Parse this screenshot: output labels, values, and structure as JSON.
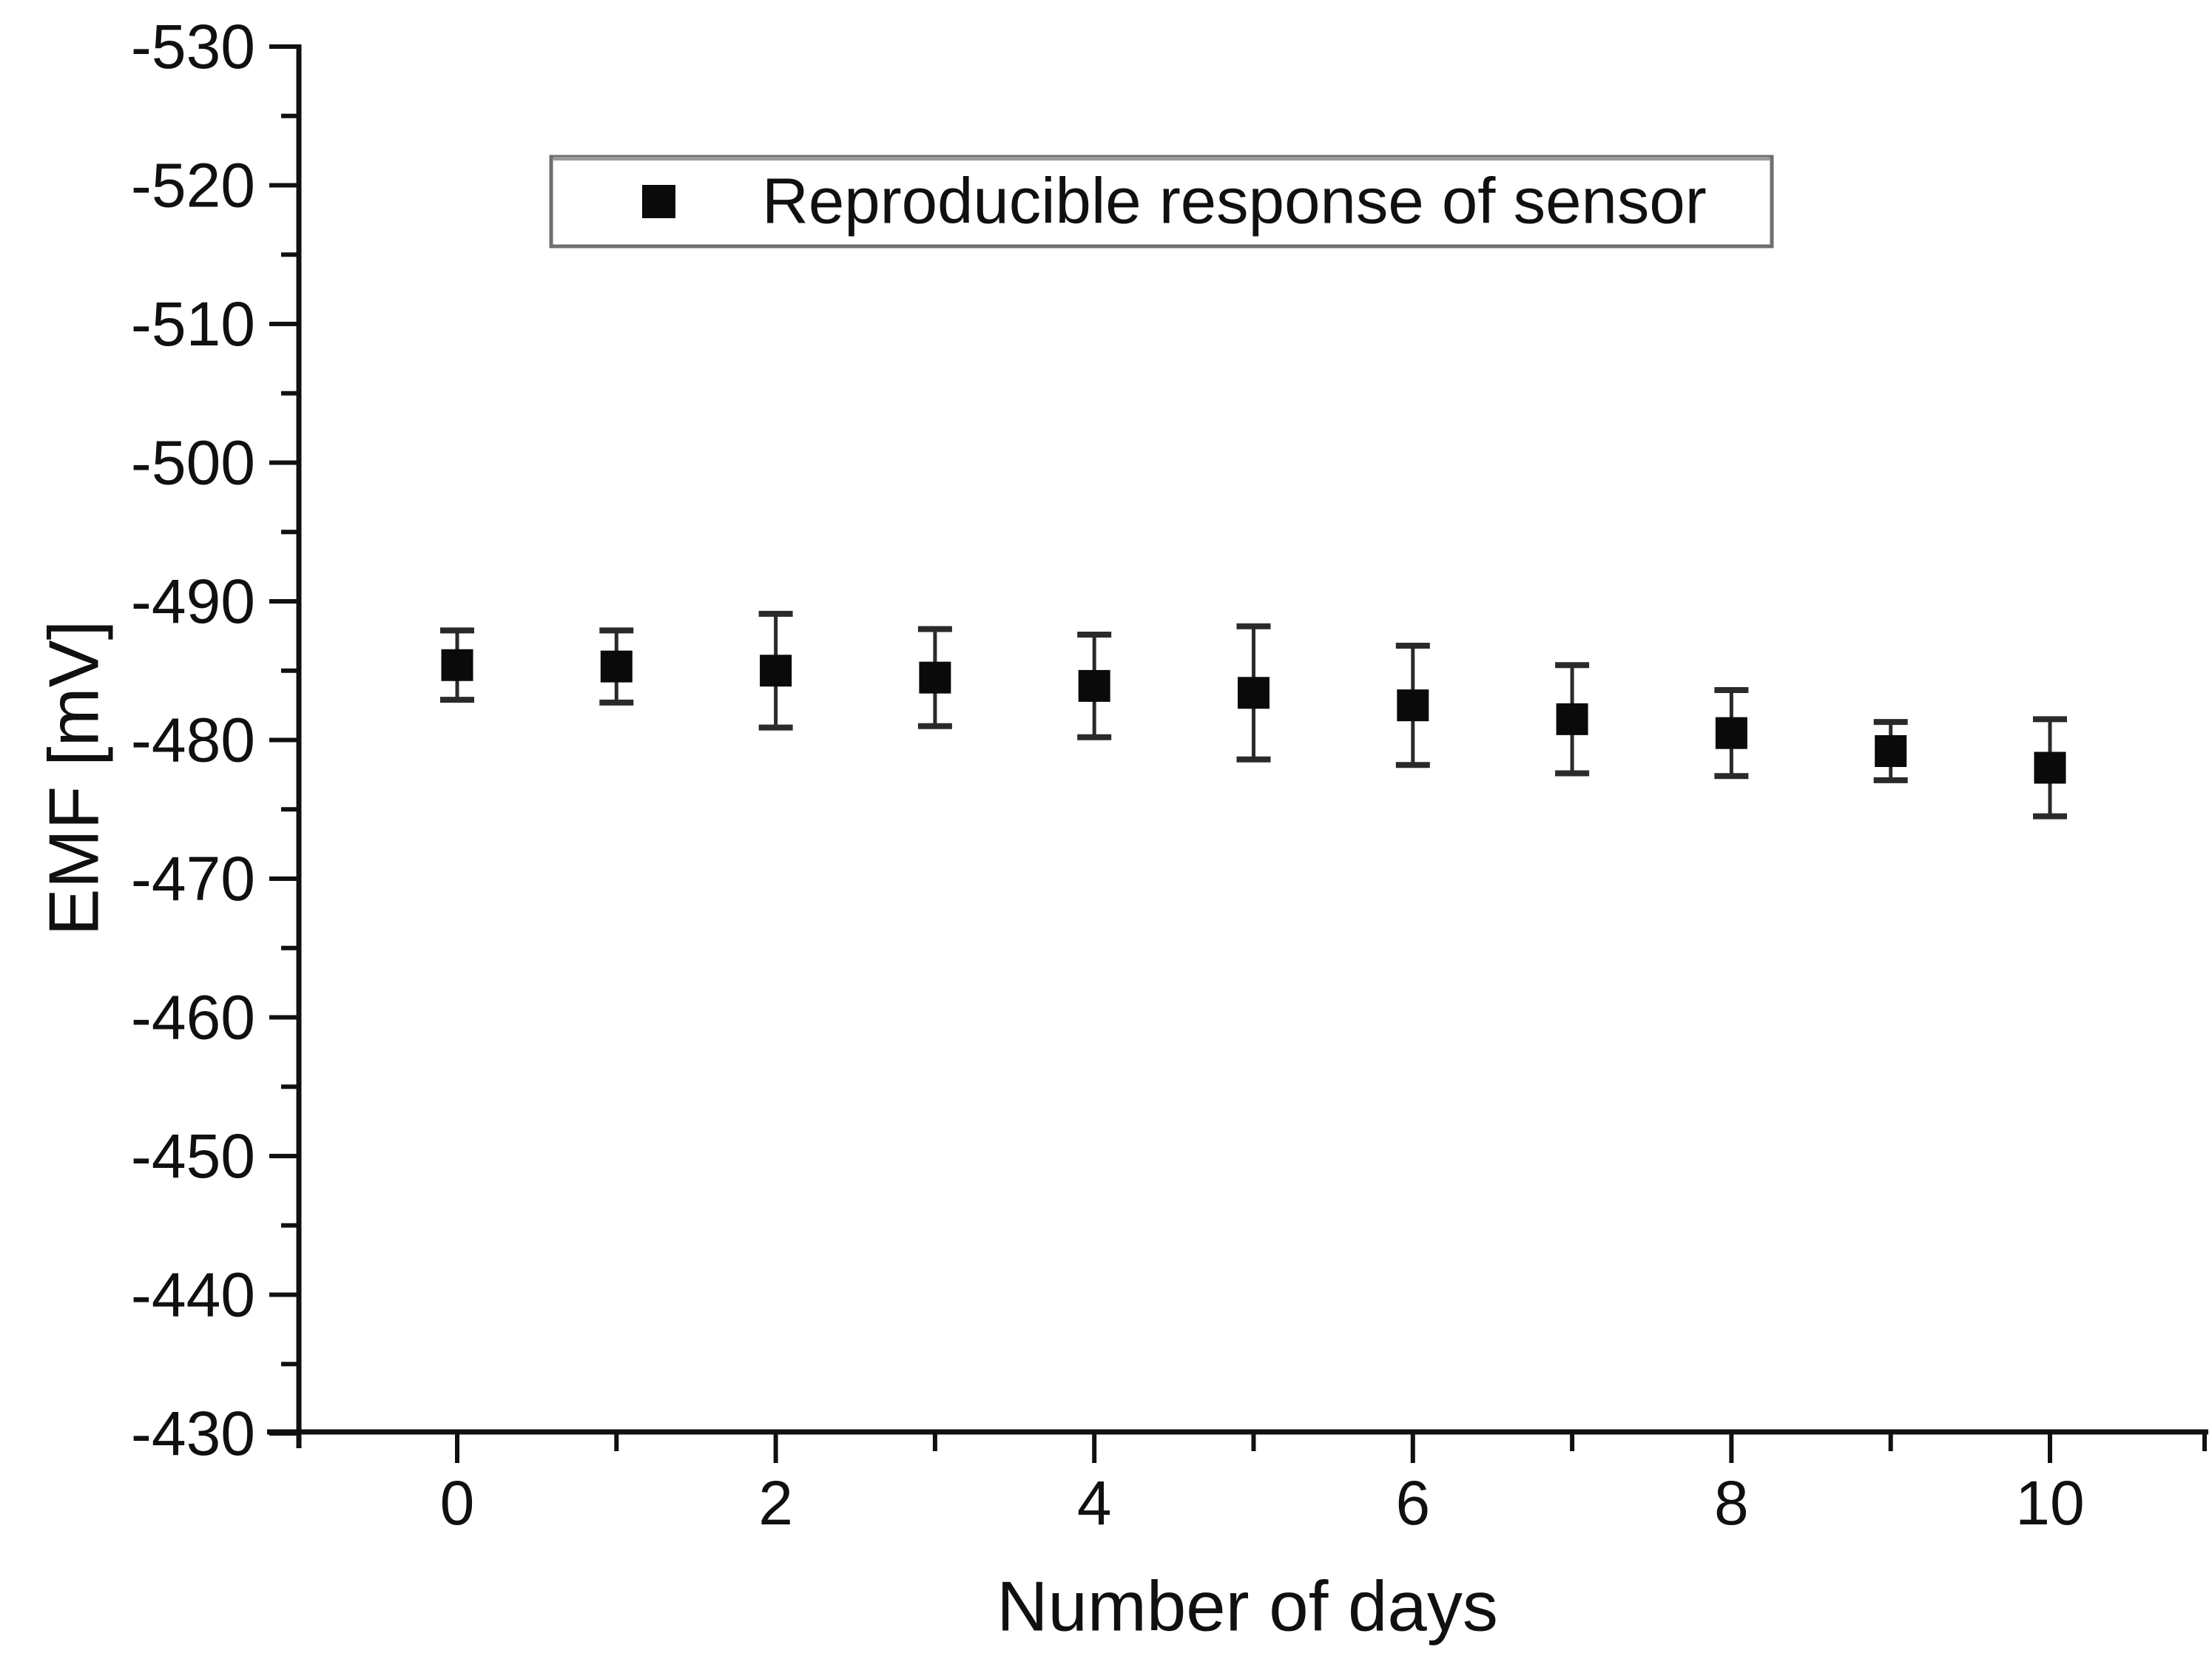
{
  "chart_data": {
    "type": "scatter",
    "title": "",
    "xlabel": "Number of days",
    "ylabel": "EMF [mV]",
    "legend_position": "top-center-inside",
    "grid": false,
    "y_axis_inverted": true,
    "ylim_top_to_bottom": [
      -530,
      -430
    ],
    "xlim": [
      0,
      11
    ],
    "x_ticks_major": [
      0,
      2,
      4,
      6,
      8,
      10
    ],
    "x_ticks_minor": [
      1,
      3,
      5,
      7,
      9,
      11
    ],
    "y_ticks_major": [
      -530,
      -520,
      -510,
      -500,
      -490,
      -480,
      -470,
      -460,
      -450,
      -440,
      -430
    ],
    "y_ticks_minor": [
      -525,
      -515,
      -505,
      -495,
      -485,
      -475,
      -465,
      -455,
      -445,
      -435
    ],
    "x": [
      0,
      1,
      2,
      3,
      4,
      5,
      6,
      7,
      8,
      9,
      10
    ],
    "series": [
      {
        "name": "Reproducible response of sensor",
        "marker": "filled-square",
        "values": [
          -485.4,
          -485.3,
          -485.0,
          -484.5,
          -483.9,
          -483.4,
          -482.5,
          -481.5,
          -480.5,
          -479.2,
          -478.0
        ],
        "errors": [
          2.5,
          2.6,
          4.1,
          3.5,
          3.7,
          4.8,
          4.3,
          3.9,
          3.1,
          2.1,
          3.5
        ]
      }
    ],
    "colors": {
      "ink": "#101010",
      "marker": "#0a0a0a",
      "error_bar": "#2a2a2a",
      "legend_border": "#6e6e6e",
      "legend_border_top": "#9a9a9a",
      "background": "#ffffff"
    }
  }
}
